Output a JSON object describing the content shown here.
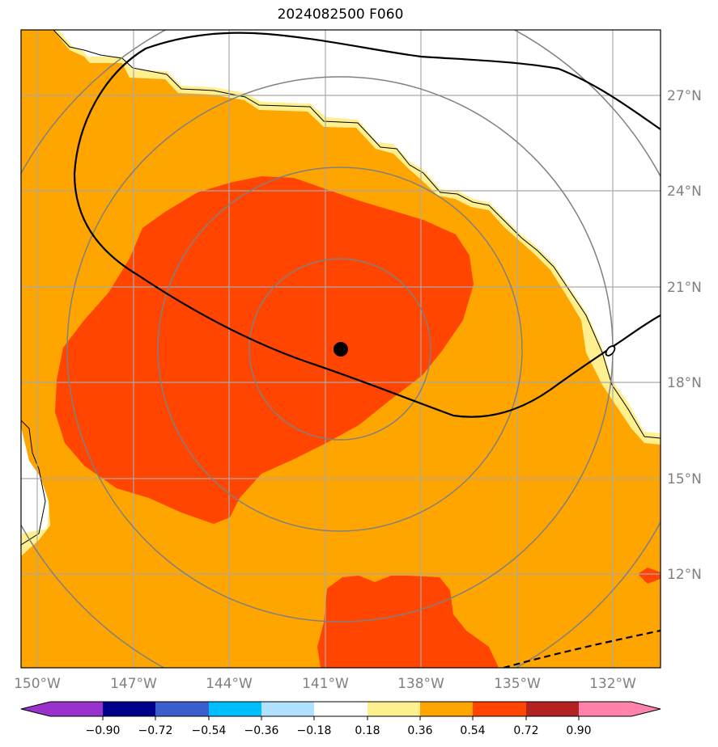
{
  "title": "2024082500 F060",
  "map": {
    "lon_range": [
      -150.5,
      -130.5
    ],
    "lat_range": [
      9.5,
      29.5
    ],
    "lon_labels": [
      "150°W",
      "147°W",
      "144°W",
      "141°W",
      "138°W",
      "135°W",
      "132°W"
    ],
    "lat_labels": [
      "27°N",
      "24°N",
      "21°N",
      "18°N",
      "15°N",
      "12°N"
    ],
    "gridline_color": "#a9a9a9",
    "storm_center": {
      "lon": -140.5,
      "lat": 19.1
    },
    "range_ring_color": "#808080"
  },
  "colorbar": {
    "labels": [
      "−0.90",
      "−0.72",
      "−0.54",
      "−0.36",
      "−0.18",
      "0.18",
      "0.36",
      "0.54",
      "0.72",
      "0.90"
    ],
    "colors": [
      "#9932cc",
      "#00008b",
      "#3a5fcd",
      "#00bfff",
      "#b0e2ff",
      "#ffffff",
      "#fff08f",
      "#ffa500",
      "#ff4500",
      "#b22222",
      "#ff82ab"
    ]
  },
  "colors": {
    "field_0.36_0.54": "#ffa500",
    "field_0.54_0.72": "#ff4500",
    "field_0.18_0.36": "#fff08f"
  }
}
